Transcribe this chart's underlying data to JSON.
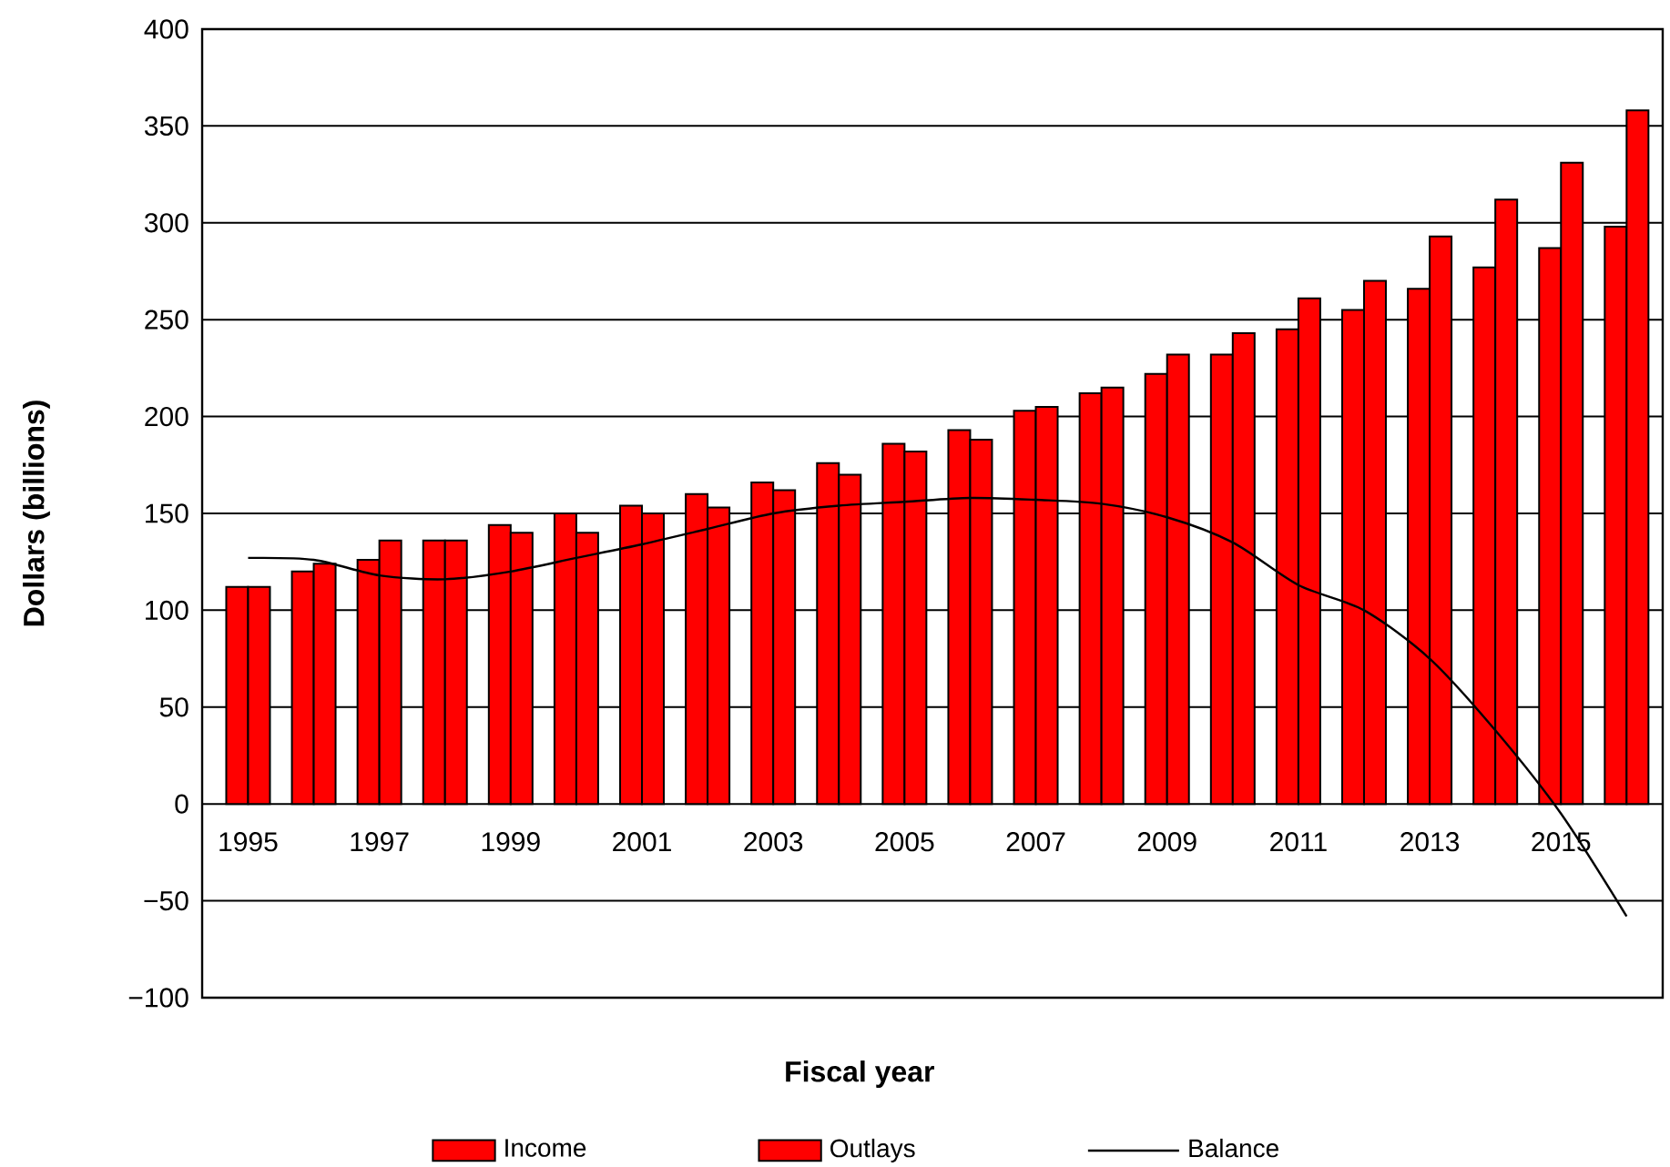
{
  "chart_data": {
    "type": "bar",
    "xlabel": "Fiscal year",
    "ylabel": "Dollars (billions)",
    "categories": [
      "1995",
      null,
      "1997",
      null,
      "1999",
      null,
      "2001",
      null,
      "2003",
      null,
      "2005",
      null,
      "2007",
      null,
      "2009",
      null,
      "2011",
      null,
      "2013",
      null,
      "2015",
      null
    ],
    "series": [
      {
        "name": "Income",
        "color": "#ff0000",
        "values": [
          112,
          120,
          126,
          136,
          144,
          150,
          154,
          160,
          166,
          176,
          186,
          193,
          203,
          212,
          222,
          232,
          245,
          255,
          266,
          277,
          287,
          298
        ]
      },
      {
        "name": "Outlays",
        "color": "#ff0000",
        "values": [
          112,
          124,
          136,
          136,
          140,
          140,
          150,
          153,
          162,
          170,
          182,
          188,
          205,
          215,
          232,
          243,
          261,
          270,
          293,
          312,
          331,
          358
        ]
      },
      {
        "name": "Balance",
        "type": "line",
        "color": "#000000",
        "values": [
          127,
          126,
          118,
          116,
          120,
          127,
          134,
          142,
          150,
          154,
          156,
          158,
          157,
          155,
          148,
          135,
          113,
          100,
          75,
          38,
          -5,
          -58
        ]
      }
    ],
    "ylim": [
      -100,
      400
    ],
    "yticks": [
      {
        "value": -100,
        "label": "−100"
      },
      {
        "value": -50,
        "label": "−50"
      },
      0,
      50,
      100,
      150,
      200,
      250,
      300,
      350,
      400
    ],
    "grid": "y",
    "legend": "bottom"
  }
}
